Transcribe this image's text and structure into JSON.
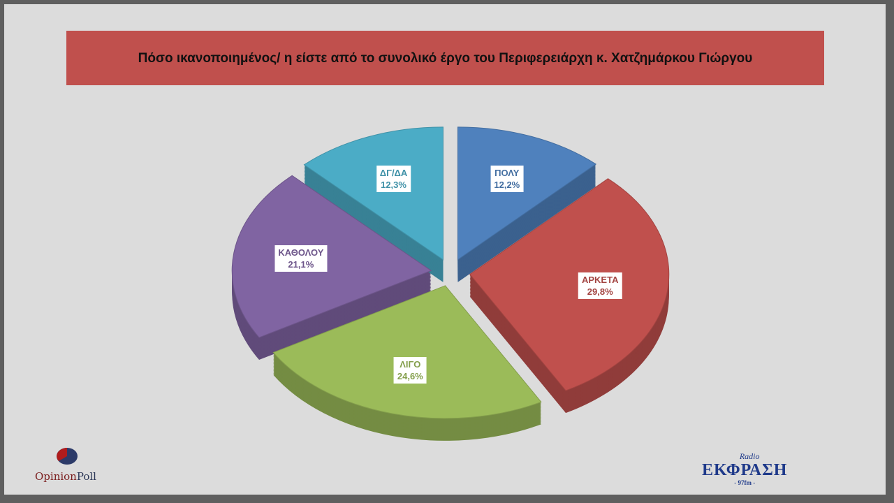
{
  "chart_data": {
    "type": "pie",
    "title": "Πόσο ικανοποιημένος/ η είστε από το συνολικό έργο  του Περιφερειάρχη κ. Χατζημάρκου Γιώργου",
    "categories": [
      "ΠΟΛΥ",
      "ΑΡΚΕΤΑ",
      "ΛΙΓΟ",
      "ΚΑΘΟΛΟΥ",
      "ΔΓ/ΔΑ"
    ],
    "values": [
      12.2,
      29.8,
      24.6,
      21.1,
      12.3
    ],
    "value_labels": [
      "12,2%",
      "29,8%",
      "24,6%",
      "21,1%",
      "12,3%"
    ],
    "colors": [
      "#4f81bd",
      "#c0504d",
      "#9bbb59",
      "#8064a2",
      "#4bacc6"
    ],
    "style": "3d-exploded"
  },
  "logos": {
    "left": "OpinionPoll",
    "right": "Radio ΕΚΦΡΑΣΗ 97fm"
  }
}
